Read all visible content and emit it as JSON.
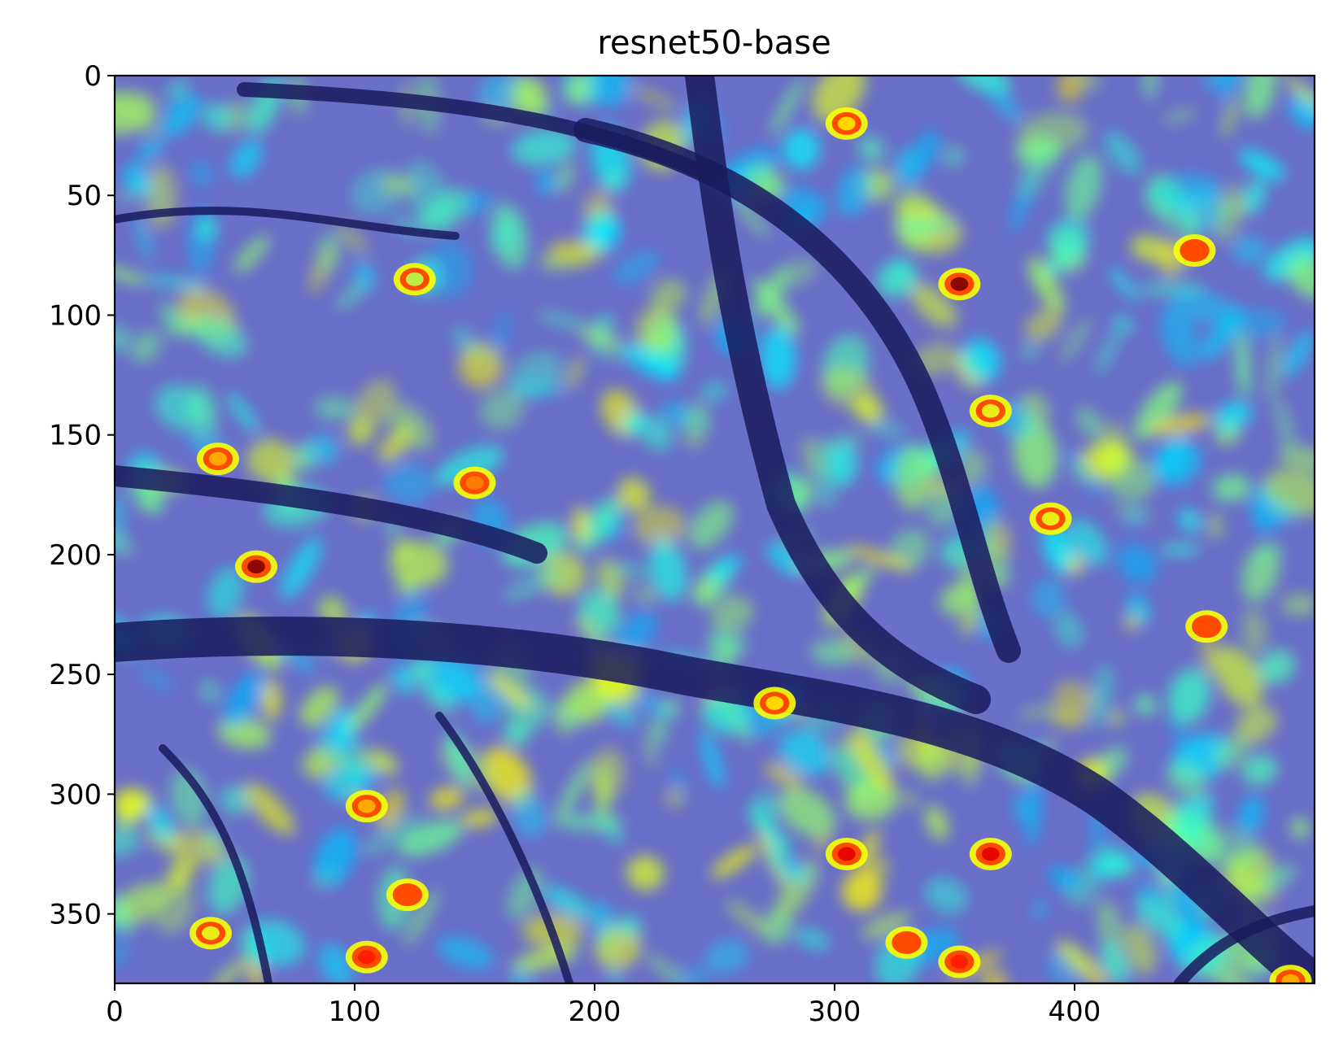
{
  "chart_data": {
    "type": "heatmap",
    "title": "resnet50-base",
    "xlabel": "",
    "ylabel": "",
    "xlim": [
      0,
      500
    ],
    "ylim": [
      379,
      0
    ],
    "x_ticks": [
      0,
      100,
      200,
      300,
      400
    ],
    "y_ticks": [
      0,
      50,
      100,
      150,
      200,
      250,
      300,
      350
    ],
    "grid": false,
    "colormap": "jet",
    "background_color": "#6a6fc8",
    "hotspots": [
      {
        "x": 59,
        "y": 205,
        "intensity": 1.0
      },
      {
        "x": 43,
        "y": 160,
        "intensity": 0.7
      },
      {
        "x": 150,
        "y": 170,
        "intensity": 0.75
      },
      {
        "x": 352,
        "y": 87,
        "intensity": 1.0
      },
      {
        "x": 450,
        "y": 73,
        "intensity": 0.8
      },
      {
        "x": 305,
        "y": 20,
        "intensity": 0.65
      },
      {
        "x": 365,
        "y": 140,
        "intensity": 0.6
      },
      {
        "x": 455,
        "y": 230,
        "intensity": 0.8
      },
      {
        "x": 390,
        "y": 185,
        "intensity": 0.6
      },
      {
        "x": 305,
        "y": 325,
        "intensity": 0.9
      },
      {
        "x": 365,
        "y": 325,
        "intensity": 0.9
      },
      {
        "x": 330,
        "y": 362,
        "intensity": 0.8
      },
      {
        "x": 352,
        "y": 370,
        "intensity": 0.85
      },
      {
        "x": 105,
        "y": 305,
        "intensity": 0.7
      },
      {
        "x": 122,
        "y": 342,
        "intensity": 0.8
      },
      {
        "x": 105,
        "y": 368,
        "intensity": 0.85
      },
      {
        "x": 40,
        "y": 358,
        "intensity": 0.6
      },
      {
        "x": 275,
        "y": 262,
        "intensity": 0.65
      },
      {
        "x": 125,
        "y": 85,
        "intensity": 0.55
      },
      {
        "x": 490,
        "y": 378,
        "intensity": 0.7
      }
    ]
  }
}
